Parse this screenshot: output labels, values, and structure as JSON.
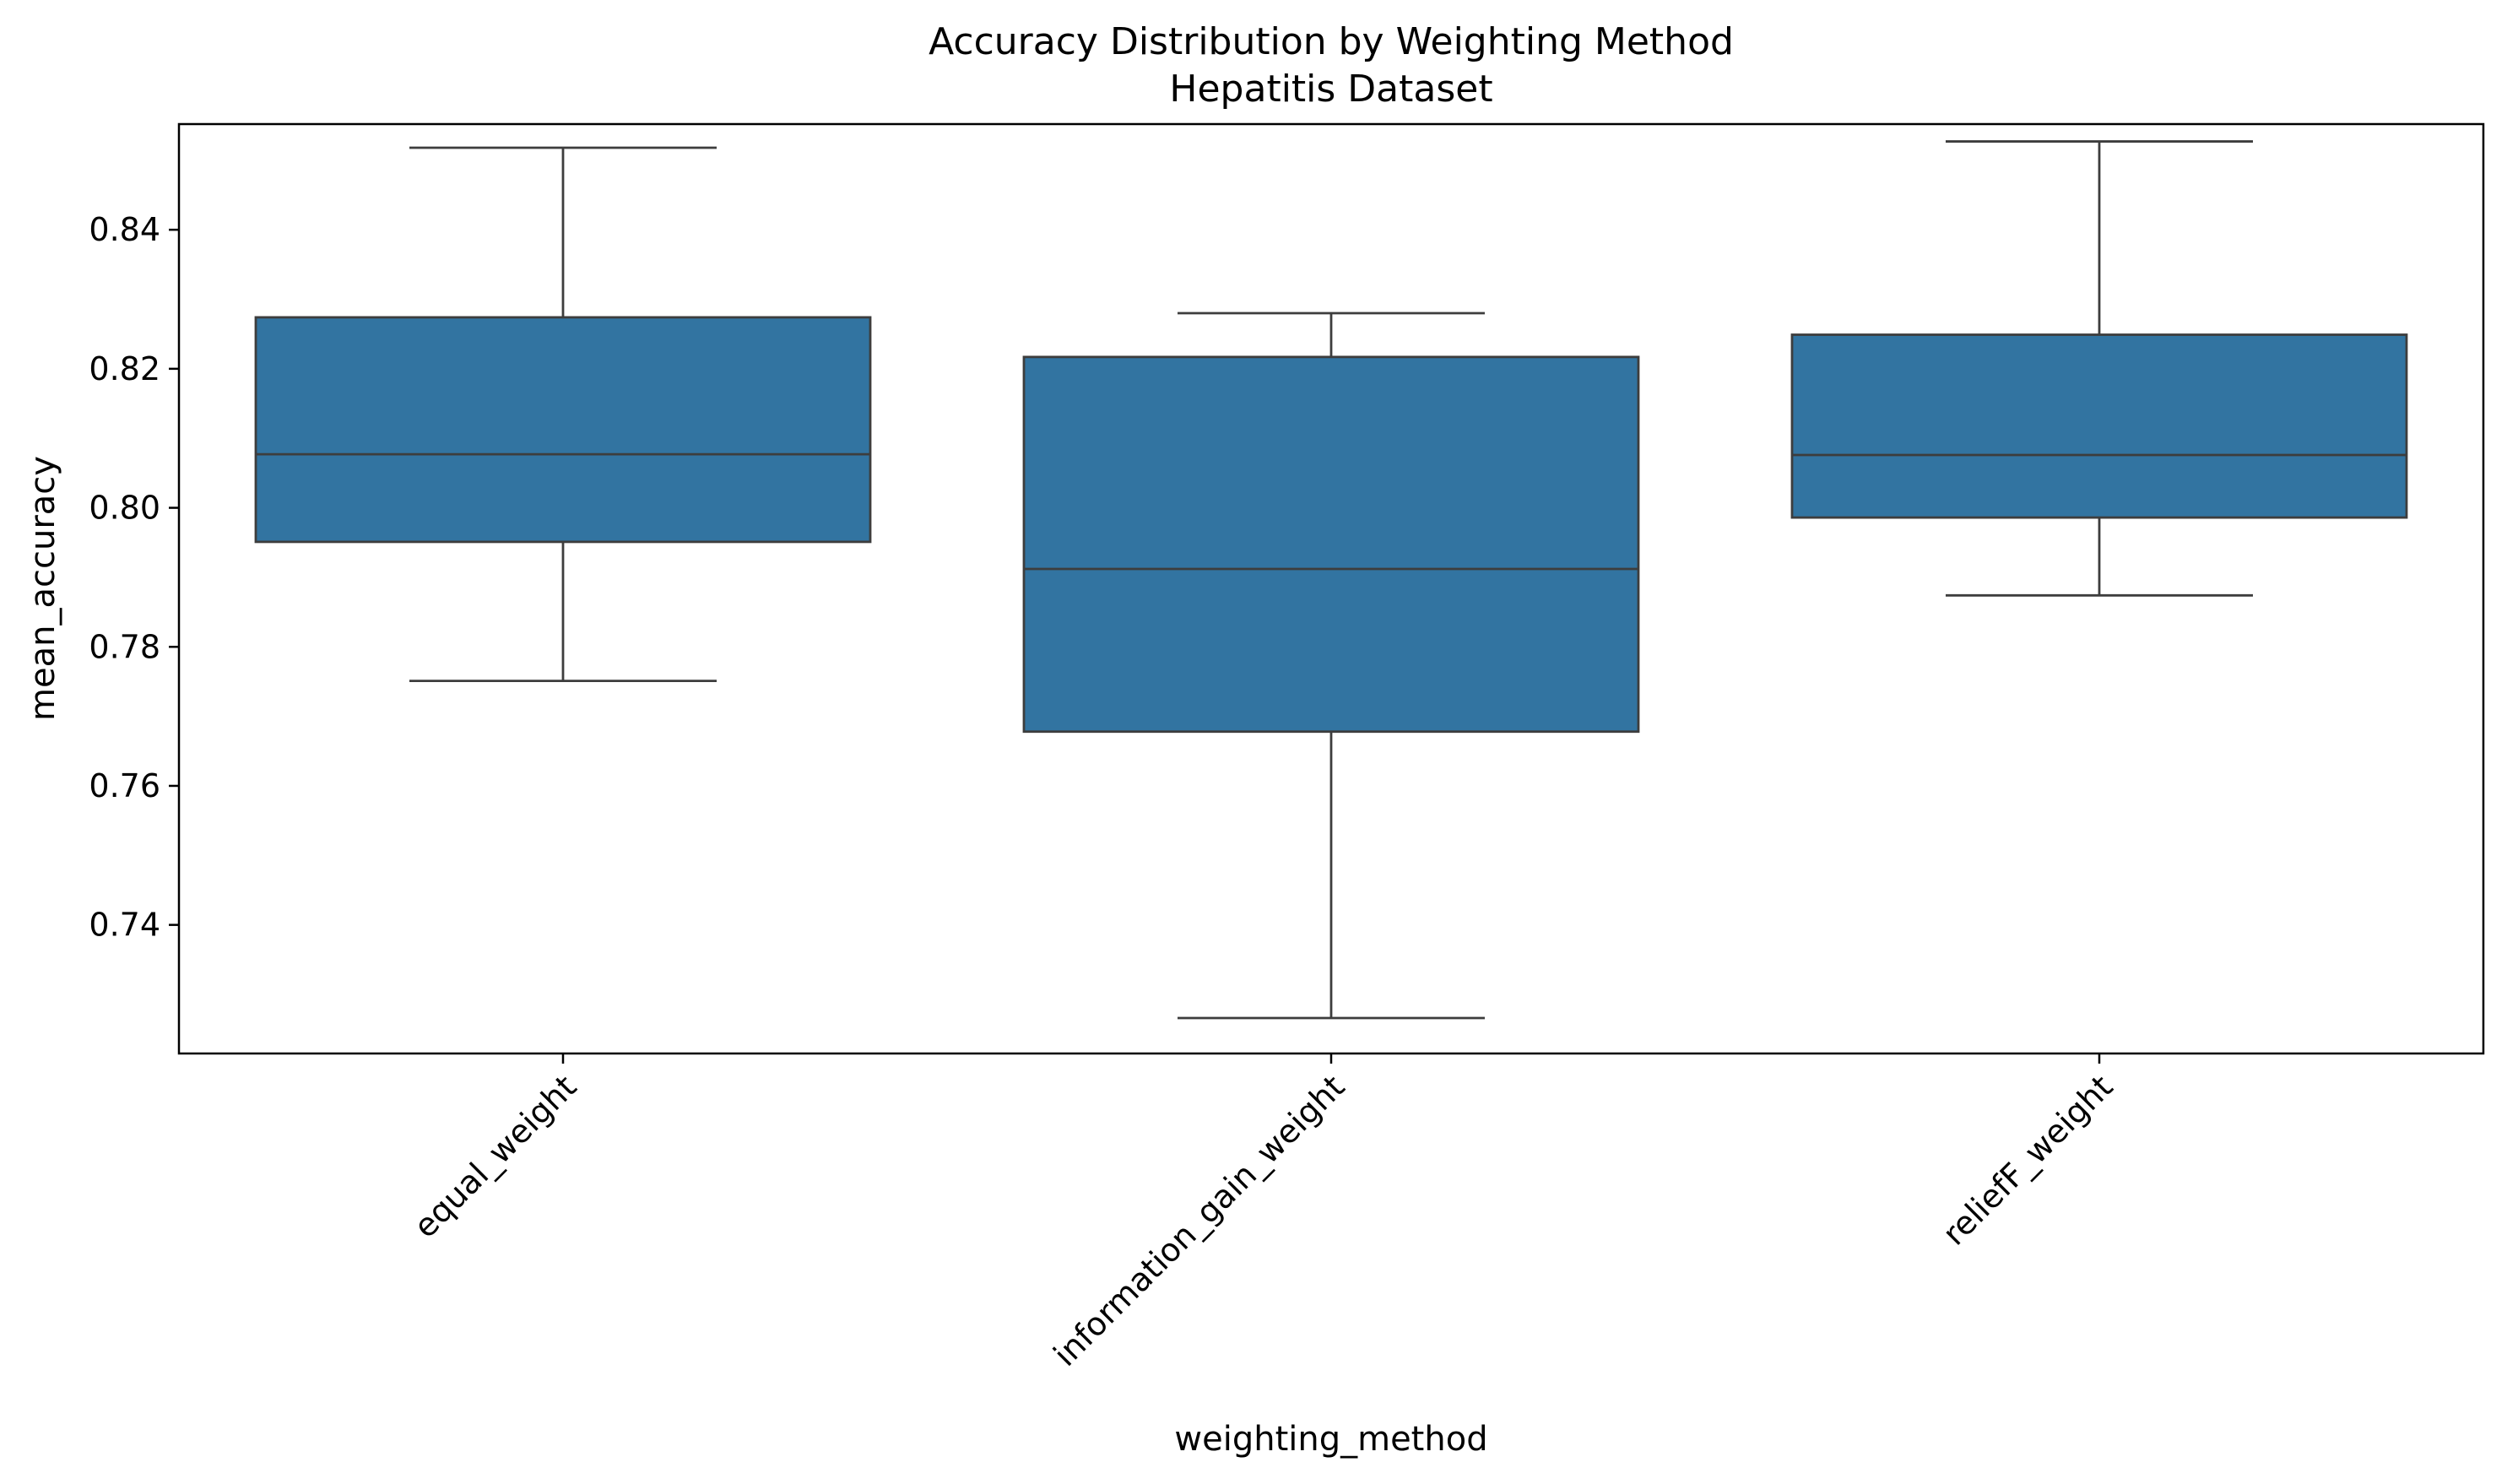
{
  "chart_data": {
    "type": "box",
    "title": "Accuracy Distribution by Weighting Method",
    "subtitle": "Hepatitis Dataset",
    "xlabel": "weighting_method",
    "ylabel": "mean_accuracy",
    "ylim": [
      0.7215,
      0.8552
    ],
    "yticks": [
      0.74,
      0.76,
      0.78,
      0.8,
      0.82,
      0.84
    ],
    "ytick_labels": [
      "0.74",
      "0.76",
      "0.78",
      "0.80",
      "0.82",
      "0.84"
    ],
    "grid": false,
    "legend": "none",
    "color": "#3274a1",
    "edge_color": "#3d3d3d",
    "categories": [
      "equal_weight",
      "information_gain_weight",
      "reliefF_weight"
    ],
    "boxes": [
      {
        "category": "equal_weight",
        "whisker_low": 0.7751,
        "q1": 0.7951,
        "median": 0.8077,
        "q3": 0.8274,
        "whisker_high": 0.8518
      },
      {
        "category": "information_gain_weight",
        "whisker_low": 0.7266,
        "q1": 0.7678,
        "median": 0.7912,
        "q3": 0.8217,
        "whisker_high": 0.828
      },
      {
        "category": "reliefF_weight",
        "whisker_low": 0.7874,
        "q1": 0.7986,
        "median": 0.8076,
        "q3": 0.8249,
        "whisker_high": 0.8527
      }
    ]
  }
}
